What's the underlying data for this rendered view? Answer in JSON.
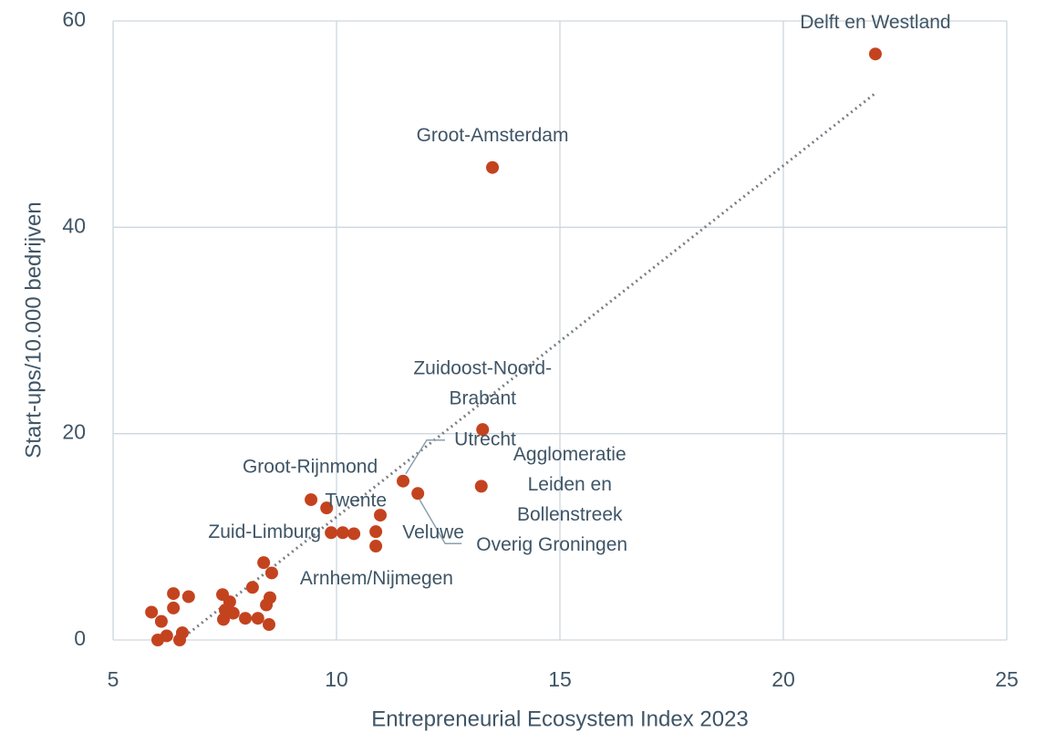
{
  "chart_data": {
    "type": "scatter",
    "x_label": "Entrepreneurial Ecosystem Index 2023",
    "y_label": "Start-ups/10.000 bedrijven",
    "color": "#c4431f",
    "x": [
      22.06,
      13.49,
      13.27,
      13.24,
      11.49,
      11.82,
      9.43,
      9.78,
      10.98,
      9.88,
      10.14,
      10.39,
      10.88,
      10.88,
      8.37,
      8.55,
      8.12,
      6.35,
      6.69,
      7.45,
      7.61,
      8.51,
      8.43,
      6.35,
      5.86,
      7.51,
      7.69,
      7.47,
      7.96,
      8.24,
      6.08,
      8.49,
      6.55,
      6.2,
      6.0,
      6.49
    ],
    "values": [
      56.8,
      45.8,
      20.4,
      14.9,
      15.4,
      14.2,
      13.6,
      12.8,
      12.1,
      10.4,
      10.4,
      10.3,
      10.5,
      9.1,
      7.5,
      6.5,
      5.1,
      4.5,
      4.2,
      4.4,
      3.7,
      4.1,
      3.4,
      3.1,
      2.7,
      2.9,
      2.6,
      2.0,
      2.1,
      2.1,
      1.8,
      1.5,
      0.7,
      0.4,
      0,
      0
    ],
    "labels": [
      [
        "Delft en Westland"
      ],
      [
        "Groot-Amsterdam"
      ],
      [
        "Zuidoost-Noord-",
        "Brabant"
      ],
      [
        "Agglomeratie",
        "Leiden en",
        "Bollenstreek"
      ],
      [
        "Utrecht"
      ],
      [
        "Overig Groningen"
      ],
      [
        "Groot-Rijnmond"
      ],
      [
        "Twente"
      ],
      null,
      [
        "Zuid-Limburg"
      ],
      null,
      null,
      [
        "Veluwe"
      ],
      null,
      null,
      [
        "Arnhem/Nijmegen"
      ],
      null,
      null,
      null,
      null,
      null,
      null,
      null,
      null,
      null,
      null,
      null,
      null,
      null,
      null,
      null,
      null,
      null,
      null,
      null,
      null
    ],
    "trendline": {
      "x": [
        6.5,
        22.06
      ],
      "values": [
        0,
        53
      ]
    },
    "xlim": [
      5,
      25
    ],
    "xticks": [
      5,
      10,
      15,
      20,
      25
    ],
    "ylim": [
      0,
      60
    ],
    "yticks": [
      0,
      20,
      40,
      60
    ],
    "grid": true
  }
}
